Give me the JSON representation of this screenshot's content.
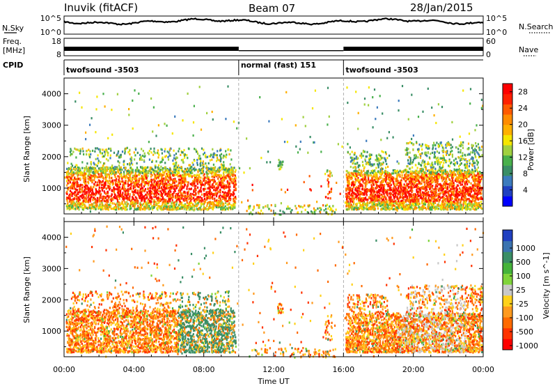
{
  "header": {
    "station": "Inuvik (fitACF)",
    "beam": "Beam 07",
    "date": "28/Jan/2015"
  },
  "nsky_panel": {
    "left_label": "N.Sky",
    "right_label": "N.Search",
    "left_ticks": [
      "10^5",
      "10^0"
    ],
    "right_ticks": [
      "10^5",
      "10^0"
    ]
  },
  "freq_panel": {
    "left_label_1": "Freq.",
    "left_label_2": "[MHz]",
    "right_label": "Nave",
    "left_ticks": [
      "18",
      "8"
    ],
    "right_ticks": [
      "60",
      "0"
    ]
  },
  "cpid_panel": {
    "label": "CPID",
    "segments": [
      {
        "label": "twofsound -3503",
        "start": "00:00"
      },
      {
        "label": "normal (fast) 151",
        "start": "10:00"
      },
      {
        "label": "twofsound -3503",
        "start": "16:00"
      }
    ]
  },
  "colors": {
    "power_scale": [
      "#0000ff",
      "#2040c0",
      "#3c7bbd",
      "#3a8e66",
      "#49b04c",
      "#a0d040",
      "#f5e600",
      "#ffb000",
      "#ff8c00",
      "#ff5a00",
      "#ff2000",
      "#ff0000"
    ],
    "velocity_scale": [
      "#ff0000",
      "#ff3300",
      "#ff6a00",
      "#ff9a1e",
      "#ffd11a",
      "#c8c8c8",
      "#7fd43a",
      "#45b33a",
      "#3a8e66",
      "#3b73b0",
      "#2040c0"
    ]
  },
  "chart_data": [
    {
      "type": "heatmap",
      "title": "",
      "xlabel": "Time UT",
      "ylabel": "Slant Range [km]",
      "x_ticks": [
        "00:00",
        "04:00",
        "08:00",
        "12:00",
        "16:00",
        "20:00",
        "00:00"
      ],
      "x_range_hours": [
        0,
        24
      ],
      "y_ticks": [
        1000,
        2000,
        3000,
        4000
      ],
      "ylim": [
        180,
        4500
      ],
      "vertical_markers_hours": [
        10,
        16
      ],
      "colorbar": {
        "label": "Power [dB]",
        "ticks": [
          4,
          8,
          12,
          16,
          20,
          24,
          28
        ],
        "range": [
          0,
          30
        ]
      }
    },
    {
      "type": "heatmap",
      "title": "",
      "xlabel": "Time UT",
      "ylabel": "Slant Range [km]",
      "x_ticks": [
        "00:00",
        "04:00",
        "08:00",
        "12:00",
        "16:00",
        "20:00",
        "00:00"
      ],
      "x_range_hours": [
        0,
        24
      ],
      "y_ticks": [
        1000,
        2000,
        3000,
        4000
      ],
      "ylim": [
        180,
        4500
      ],
      "vertical_markers_hours": [
        10,
        16
      ],
      "colorbar": {
        "label": "Velocity [m s^-1]",
        "ticks": [
          "1000",
          "500",
          "100",
          "25",
          "-25",
          "-100",
          "-500",
          "-1000"
        ]
      }
    }
  ]
}
